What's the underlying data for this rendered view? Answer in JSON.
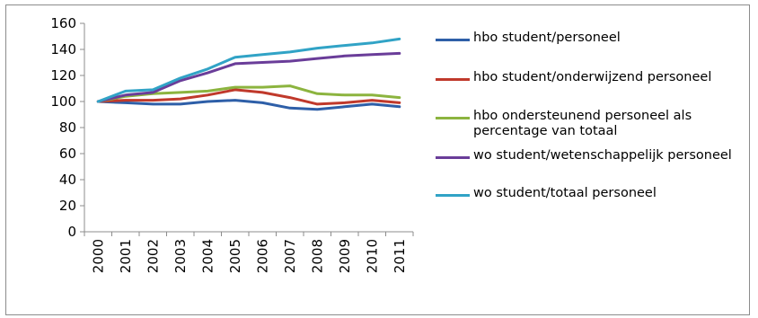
{
  "chart_data": {
    "type": "line",
    "categories": [
      "2000",
      "2001",
      "2002",
      "2003",
      "2004",
      "2005",
      "2006",
      "2007",
      "2008",
      "2009",
      "2010",
      "2011"
    ],
    "ylim": [
      0,
      160
    ],
    "yticks": [
      0,
      20,
      40,
      60,
      80,
      100,
      120,
      140,
      160
    ],
    "grid": false,
    "legend_position": "right",
    "series": [
      {
        "name": "hbo student/personeel",
        "color": "#2e5fa8",
        "values": [
          100,
          99,
          98,
          98,
          100,
          101,
          99,
          95,
          94,
          96,
          98,
          96
        ]
      },
      {
        "name": "hbo student/onderwijzend personeel",
        "color": "#c0392b",
        "values": [
          100,
          101,
          101,
          102,
          105,
          109,
          107,
          103,
          98,
          99,
          101,
          99
        ]
      },
      {
        "name": "hbo ondersteunend personeel als percentage van totaal",
        "color": "#8cb43f",
        "values": [
          100,
          104,
          106,
          107,
          108,
          111,
          111,
          112,
          106,
          105,
          105,
          103
        ]
      },
      {
        "name": "wo student/wetenschappelijk personeel",
        "color": "#6a3d99",
        "values": [
          100,
          105,
          107,
          116,
          122,
          129,
          130,
          131,
          133,
          135,
          136,
          137
        ]
      },
      {
        "name": "wo student/totaal personeel",
        "color": "#31a3c6",
        "values": [
          100,
          108,
          109,
          118,
          125,
          134,
          136,
          138,
          141,
          143,
          145,
          148
        ]
      }
    ]
  }
}
